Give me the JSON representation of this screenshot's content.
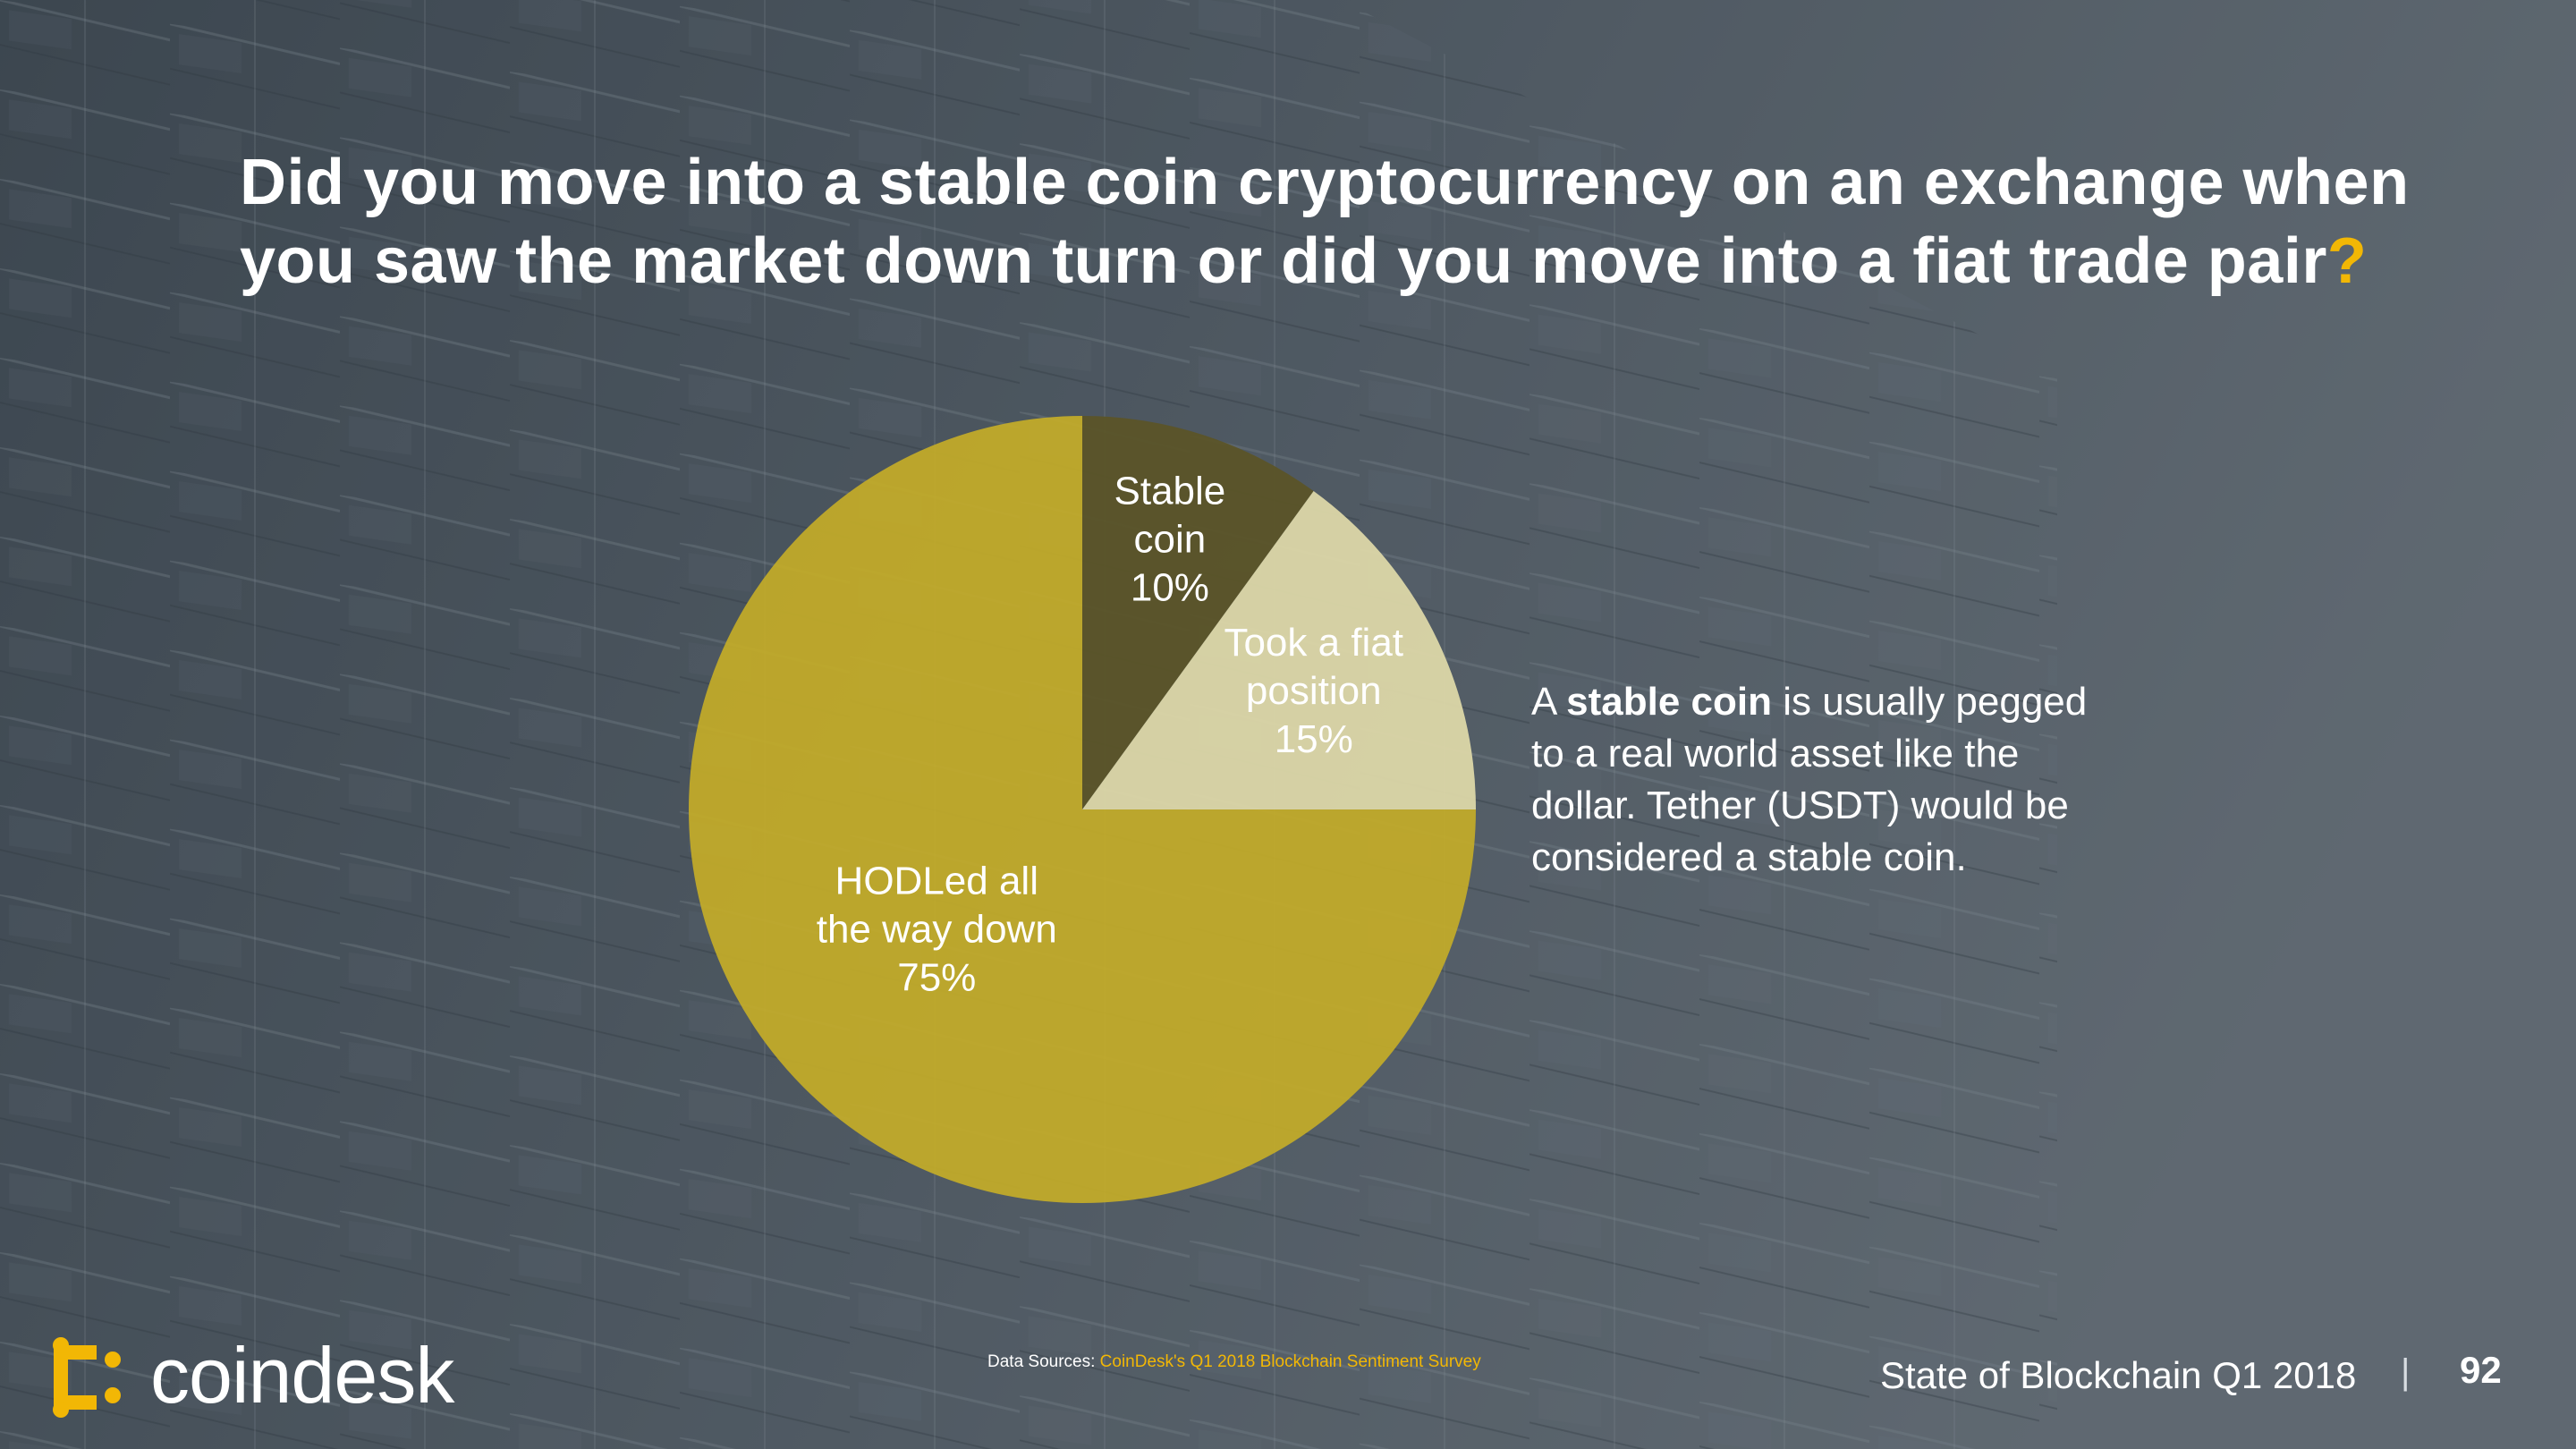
{
  "slide": {
    "title_main": "Did you move into a stable coin cryptocurrency on an exchange when you saw the market down turn or did you move into a fiat trade pair",
    "title_mark": "?",
    "note": {
      "prefix": "A ",
      "bold": "stable coin",
      "suffix": " is usually pegged to a real world asset like the dollar. Tether (USDT) would be considered a stable coin."
    },
    "logo_text": "coindesk",
    "sources_label": "Data Sources: ",
    "sources_link": "CoinDesk's Q1 2018 Blockchain Sentiment Survey",
    "footer_title": "State of Blockchain Q1 2018",
    "footer_separator": "|",
    "page_number": "92"
  },
  "colors": {
    "accent": "#f2b705",
    "stable": "#5b5428",
    "fiat": "#dcd7a8",
    "hodl": "#c4ad28"
  },
  "chart_data": {
    "type": "pie",
    "slices": [
      {
        "label_lines": [
          "Stable",
          "coin"
        ],
        "value": 10,
        "display": "10%",
        "color": "#5b5428"
      },
      {
        "label_lines": [
          "Took a fiat",
          "position"
        ],
        "value": 15,
        "display": "15%",
        "color": "#dcd7a8"
      },
      {
        "label_lines": [
          "HODLed all",
          "the way down"
        ],
        "value": 75,
        "display": "75%",
        "color": "#c4ad28"
      }
    ],
    "start": "top",
    "direction": "clockwise"
  }
}
